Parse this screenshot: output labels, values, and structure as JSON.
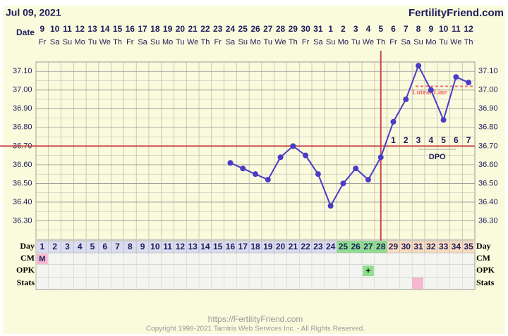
{
  "header_date": "Jul 09, 2021",
  "site": "FertilityFriend.com",
  "footer_url": "https://FertilityFriend.com",
  "copyright": "Copyright 1998-2021 Tamtris Web Services Inc. - All Rights Reserved.",
  "chart_data": {
    "type": "line",
    "date_label": "Date",
    "categories": [
      "9",
      "10",
      "11",
      "12",
      "13",
      "14",
      "15",
      "16",
      "17",
      "18",
      "19",
      "20",
      "21",
      "22",
      "23",
      "24",
      "25",
      "26",
      "27",
      "28",
      "29",
      "30",
      "31",
      "1",
      "2",
      "3",
      "4",
      "5",
      "6",
      "7",
      "8",
      "9",
      "10",
      "11",
      "12"
    ],
    "weekdays": [
      "Fr",
      "Sa",
      "Su",
      "Mo",
      "Tu",
      "We",
      "Th",
      "Fr",
      "Sa",
      "Su",
      "Mo",
      "Tu",
      "We",
      "Th",
      "Fr",
      "Sa",
      "Su",
      "Mo",
      "Tu",
      "We",
      "Th",
      "Fr",
      "Sa",
      "Su",
      "Mo",
      "Tu",
      "We",
      "Th",
      "Fr",
      "Sa",
      "Su",
      "Mo",
      "Tu",
      "We",
      "Th"
    ],
    "series": [
      {
        "name": "Temperature",
        "color": "#4a3cc4",
        "values": [
          null,
          null,
          null,
          null,
          null,
          null,
          null,
          null,
          null,
          null,
          null,
          null,
          null,
          null,
          null,
          36.61,
          36.58,
          36.55,
          36.52,
          36.64,
          36.7,
          36.65,
          36.55,
          36.38,
          36.5,
          36.58,
          36.52,
          36.64,
          36.83,
          36.95,
          37.13,
          37.0,
          36.84,
          37.07,
          37.04
        ]
      }
    ],
    "ylim": [
      36.2,
      37.15
    ],
    "yticks": [
      {
        "value": 36.3,
        "label": "36.30"
      },
      {
        "value": 36.4,
        "label": "36.40"
      },
      {
        "value": 36.5,
        "label": "36.50"
      },
      {
        "value": 36.6,
        "label": "36.60"
      },
      {
        "value": 36.7,
        "label": "36.70"
      },
      {
        "value": 36.8,
        "label": "36.80"
      },
      {
        "value": 36.9,
        "label": "36.90"
      },
      {
        "value": 37.0,
        "label": "37.00"
      },
      {
        "value": 37.1,
        "label": "37.10"
      }
    ],
    "grid": true,
    "coverline": {
      "value": 36.7,
      "color": "#c84848"
    },
    "ovulation_day_index": 27,
    "luteal_line": {
      "label": "Luteal Line",
      "value": 37.02,
      "color": "#f07070",
      "start_index": 30
    },
    "dpo": {
      "label": "DPO",
      "values": [
        null,
        null,
        null,
        null,
        null,
        null,
        null,
        null,
        null,
        null,
        null,
        null,
        null,
        null,
        null,
        null,
        null,
        null,
        null,
        null,
        null,
        null,
        null,
        null,
        null,
        null,
        null,
        null,
        1,
        2,
        3,
        4,
        5,
        6,
        7
      ]
    },
    "day_label": "Day",
    "cycle_days": [
      1,
      2,
      3,
      4,
      5,
      6,
      7,
      8,
      9,
      10,
      11,
      12,
      13,
      14,
      15,
      16,
      17,
      18,
      19,
      20,
      21,
      22,
      23,
      24,
      25,
      26,
      27,
      28,
      29,
      30,
      31,
      32,
      33,
      34,
      35
    ],
    "fertile_window": [
      24,
      27
    ],
    "phase_colors": {
      "pre": "#dcdcf0",
      "fertile": "#8ee08e",
      "post": "#f8dcc0"
    },
    "cm_label": "CM",
    "cm": [
      "M",
      null,
      null,
      null,
      null,
      null,
      null,
      null,
      null,
      null,
      null,
      null,
      null,
      null,
      null,
      null,
      null,
      null,
      null,
      null,
      null,
      null,
      null,
      null,
      null,
      null,
      null,
      null,
      null,
      null,
      null,
      null,
      null,
      null,
      null
    ],
    "opk_label": "OPK",
    "opk": [
      null,
      null,
      null,
      null,
      null,
      null,
      null,
      null,
      null,
      null,
      null,
      null,
      null,
      null,
      null,
      null,
      null,
      null,
      null,
      null,
      null,
      null,
      null,
      null,
      null,
      null,
      "+",
      null,
      null,
      null,
      null,
      null,
      null,
      null,
      null
    ],
    "stats_label": "Stats"
  }
}
